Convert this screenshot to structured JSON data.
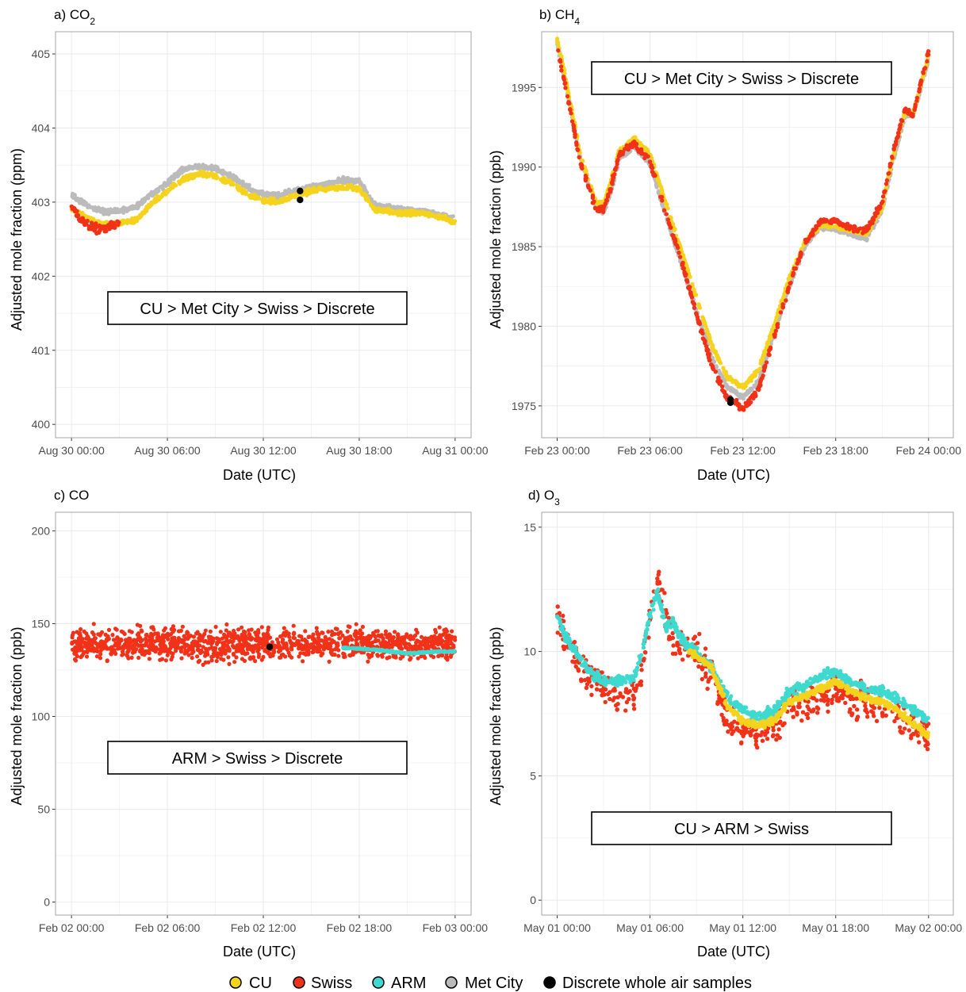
{
  "colors": {
    "CU": "#f5d31c",
    "Swiss": "#f23218",
    "ARM": "#3ed9cf",
    "MetCity": "#bbbbbb",
    "Discrete": "#000000",
    "grid": "#ebebeb",
    "panel_border": "#a6a6a6"
  },
  "legend": {
    "entries": [
      {
        "key": "CU",
        "label": "CU"
      },
      {
        "key": "Swiss",
        "label": "Swiss"
      },
      {
        "key": "ARM",
        "label": "ARM"
      },
      {
        "key": "MetCity",
        "label": "Met City"
      },
      {
        "key": "Discrete",
        "label": "Discrete whole air samples"
      }
    ]
  },
  "chart_data": [
    {
      "type": "scatter",
      "title": "a) CO",
      "title_sub": "2",
      "xlabel": "Date (UTC)",
      "ylabel": "Adjusted mole fraction (ppm)",
      "x_unit": "hours since Aug 30 00:00",
      "xlim": [
        -1,
        25
      ],
      "ylim": [
        399.82,
        405.3
      ],
      "xticks": [
        0,
        6,
        12,
        18,
        24
      ],
      "xtick_labels": [
        "Aug 30 00:00",
        "Aug 30 06:00",
        "Aug 30 12:00",
        "Aug 30 18:00",
        "Aug 31 00:00"
      ],
      "yticks": [
        400,
        401,
        402,
        403,
        404,
        405
      ],
      "ytick_labels": [
        "400",
        "401",
        "402",
        "403",
        "404",
        "405"
      ],
      "annotation": "CU > Met City > Swiss > Discrete",
      "annotation_pos": "lower-left",
      "series": [
        {
          "name": "Met City",
          "key": "MetCity",
          "style": "band",
          "x": [
            0,
            1,
            2,
            3,
            4,
            5,
            6,
            7,
            8,
            9,
            10,
            11,
            12,
            13,
            14,
            15,
            16,
            17,
            18,
            19,
            20,
            21,
            22,
            23,
            24
          ],
          "y": [
            403.1,
            402.95,
            402.87,
            402.88,
            402.93,
            403.1,
            403.25,
            403.45,
            403.48,
            403.45,
            403.35,
            403.2,
            403.1,
            403.1,
            403.15,
            403.2,
            403.25,
            403.3,
            403.28,
            402.95,
            402.92,
            402.9,
            402.88,
            402.82,
            402.78
          ],
          "spread": 0.05
        },
        {
          "name": "CU",
          "key": "CU",
          "style": "band",
          "x": [
            0,
            1,
            2,
            3,
            4,
            5,
            6,
            7,
            8,
            9,
            10,
            11,
            12,
            13,
            14,
            15,
            16,
            17,
            18,
            19,
            20,
            21,
            22,
            23,
            24
          ],
          "y": [
            402.92,
            402.78,
            402.7,
            402.72,
            402.75,
            402.98,
            403.15,
            403.32,
            403.38,
            403.35,
            403.25,
            403.1,
            403.02,
            403.0,
            403.1,
            403.15,
            403.18,
            403.2,
            403.18,
            402.9,
            402.88,
            402.85,
            402.85,
            402.8,
            402.73
          ],
          "spread": 0.05
        },
        {
          "name": "Swiss",
          "key": "Swiss",
          "style": "points",
          "x": [
            0,
            0.5,
            1,
            1.5,
            2,
            2.5,
            3
          ],
          "y": [
            402.95,
            402.8,
            402.7,
            402.65,
            402.62,
            402.7,
            402.72
          ],
          "spread": 0.1
        },
        {
          "name": "Discrete whole air samples",
          "key": "Discrete",
          "style": "markers",
          "x": [
            14.3,
            14.3
          ],
          "y": [
            403.15,
            403.03
          ]
        }
      ]
    },
    {
      "type": "scatter",
      "title": "b) CH",
      "title_sub": "4",
      "xlabel": "Date (UTC)",
      "ylabel": "Adjusted mole fraction (ppb)",
      "x_unit": "hours since Feb 23 00:00",
      "xlim": [
        -1,
        25.6
      ],
      "ylim": [
        1973,
        1998.5
      ],
      "xticks": [
        0,
        6,
        12,
        18,
        24
      ],
      "xtick_labels": [
        "Feb 23 00:00",
        "Feb 23 06:00",
        "Feb 23 12:00",
        "Feb 23 18:00",
        "Feb 24 00:00"
      ],
      "yticks": [
        1975,
        1980,
        1985,
        1990,
        1995
      ],
      "ytick_labels": [
        "1975",
        "1980",
        "1985",
        "1990",
        "1995"
      ],
      "annotation": "CU > Met City > Swiss > Discrete",
      "annotation_pos": "top-center",
      "series": [
        {
          "name": "Met City",
          "key": "MetCity",
          "style": "band",
          "x": [
            0,
            0.5,
            1,
            1.5,
            2,
            2.5,
            3,
            3.5,
            4,
            5,
            6,
            7,
            8,
            9,
            10,
            11,
            12,
            13,
            14,
            15,
            16,
            17,
            18,
            19,
            20,
            21,
            21.5,
            22,
            22.5,
            23,
            24
          ],
          "y": [
            1997.8,
            1995.5,
            1993,
            1990.5,
            1989,
            1987.5,
            1987.2,
            1988.5,
            1990.5,
            1991.3,
            1990.2,
            1987,
            1984,
            1981,
            1978,
            1976.2,
            1975.5,
            1976.5,
            1979.5,
            1982.5,
            1985,
            1986.2,
            1986.1,
            1985.8,
            1985.5,
            1987.3,
            1989.5,
            1991.5,
            1993.3,
            1993.2,
            1996.8
          ],
          "spread": 0.2
        },
        {
          "name": "CU",
          "key": "CU",
          "style": "band",
          "x": [
            0,
            0.5,
            1,
            1.5,
            2,
            2.5,
            3,
            3.5,
            4,
            5,
            6,
            7,
            8,
            9,
            10,
            11,
            12,
            13,
            14,
            15,
            16,
            17,
            18,
            19,
            20,
            21,
            21.5,
            22,
            22.5,
            23,
            24
          ],
          "y": [
            1998,
            1995.8,
            1993.3,
            1990.8,
            1989.3,
            1987.8,
            1987.7,
            1989.2,
            1991,
            1991.8,
            1990.8,
            1987.8,
            1984.8,
            1981.8,
            1978.8,
            1976.8,
            1976.2,
            1977.2,
            1980,
            1983,
            1985.3,
            1986.4,
            1986.3,
            1986,
            1985.8,
            1987.5,
            1989.8,
            1991.8,
            1993.5,
            1993.3,
            1997
          ],
          "spread": 0.2
        },
        {
          "name": "Swiss",
          "key": "Swiss",
          "style": "points",
          "x": [
            0,
            0.5,
            1,
            1.5,
            2,
            2.5,
            3,
            3.5,
            4,
            5,
            6,
            7,
            8,
            9,
            10,
            11,
            12,
            13,
            14,
            15,
            16,
            17,
            18,
            19,
            20,
            21,
            21.5,
            22,
            22.5,
            23,
            24
          ],
          "y": [
            1997.5,
            1995.3,
            1992.8,
            1990.3,
            1988.8,
            1987.4,
            1987.3,
            1988.8,
            1990.8,
            1991.5,
            1990.3,
            1987.2,
            1984.2,
            1980.8,
            1977.5,
            1975.5,
            1974.8,
            1976,
            1979.3,
            1982.6,
            1985.2,
            1986.6,
            1986.6,
            1986.2,
            1986,
            1987.8,
            1990,
            1992,
            1993.6,
            1993.3,
            1997.2
          ],
          "spread": 0.3
        },
        {
          "name": "Discrete whole air samples",
          "key": "Discrete",
          "style": "markers",
          "x": [
            11.2,
            11.2
          ],
          "y": [
            1975.4,
            1975.2
          ]
        }
      ]
    },
    {
      "type": "scatter",
      "title": "c) CO",
      "title_sub": "",
      "xlabel": "Date (UTC)",
      "ylabel": "Adjusted mole fraction (ppb)",
      "x_unit": "hours since Feb 02 00:00",
      "xlim": [
        -1,
        25
      ],
      "ylim": [
        -7,
        210
      ],
      "xticks": [
        0,
        6,
        12,
        18,
        24
      ],
      "xtick_labels": [
        "Feb 02 00:00",
        "Feb 02 06:00",
        "Feb 02 12:00",
        "Feb 02 18:00",
        "Feb 03 00:00"
      ],
      "yticks": [
        0,
        50,
        100,
        150,
        200
      ],
      "ytick_labels": [
        "0",
        "50",
        "100",
        "150",
        "200"
      ],
      "annotation": "ARM > Swiss > Discrete",
      "annotation_pos": "lower-left",
      "series": [
        {
          "name": "Swiss",
          "key": "Swiss",
          "style": "noise",
          "x": [
            0,
            24
          ],
          "y": [
            139,
            139
          ],
          "spread": 12
        },
        {
          "name": "ARM",
          "key": "ARM",
          "style": "band",
          "x": [
            17,
            18,
            19,
            20,
            21,
            22,
            23,
            24
          ],
          "y": [
            137,
            136.5,
            136,
            135,
            134,
            134.5,
            135,
            135
          ],
          "spread": 0.4
        },
        {
          "name": "Discrete whole air samples",
          "key": "Discrete",
          "style": "markers",
          "x": [
            12.4
          ],
          "y": [
            137.5
          ]
        }
      ]
    },
    {
      "type": "scatter",
      "title": "d) O",
      "title_sub": "3",
      "xlabel": "Date (UTC)",
      "ylabel": "Adjusted mole fraction (ppb)",
      "x_unit": "hours since May 01 00:00",
      "xlim": [
        -1,
        25.6
      ],
      "ylim": [
        -0.6,
        15.6
      ],
      "xticks": [
        0,
        6,
        12,
        18,
        24
      ],
      "xtick_labels": [
        "May 01 00:00",
        "May 01 06:00",
        "May 01 12:00",
        "May 01 18:00",
        "May 02 00:00"
      ],
      "yticks": [
        0,
        5,
        10,
        15
      ],
      "ytick_labels": [
        "0",
        "5",
        "10",
        "15"
      ],
      "annotation": "CU > ARM > Swiss",
      "annotation_pos": "lower-center",
      "series": [
        {
          "name": "Swiss",
          "key": "Swiss",
          "style": "points",
          "x": [
            0,
            0.5,
            1,
            2,
            3,
            4,
            5,
            5.5,
            6,
            6.5,
            7,
            7.5,
            8,
            9,
            10,
            11,
            12,
            13,
            14,
            15,
            16,
            17,
            18,
            19,
            20,
            21,
            22,
            23,
            24
          ],
          "y": [
            11.5,
            10.5,
            10,
            9,
            8.5,
            8,
            8.3,
            9.5,
            11.5,
            12.8,
            11.5,
            10.5,
            10.3,
            10,
            9,
            7.3,
            6.8,
            6.5,
            7,
            7.8,
            8,
            8.2,
            8.5,
            8,
            8,
            7.8,
            7.5,
            7,
            6.5
          ],
          "spread": 1
        },
        {
          "name": "ARM",
          "key": "ARM",
          "style": "band",
          "x": [
            0,
            0.5,
            1,
            2,
            3,
            4,
            5,
            5.5,
            6,
            6.5,
            7,
            7.5,
            8,
            9,
            10,
            11,
            12,
            13,
            14,
            15,
            16,
            17,
            18,
            19,
            20,
            21,
            22,
            23,
            24
          ],
          "y": [
            11.5,
            10.6,
            10.2,
            9.2,
            8.8,
            8.8,
            9,
            10,
            11.5,
            12.4,
            11,
            11.2,
            10.5,
            10,
            9.3,
            8.2,
            7.6,
            7.4,
            7.6,
            8.4,
            8.6,
            9,
            9.2,
            8.8,
            8.5,
            8.4,
            8.1,
            7.7,
            7.2
          ],
          "spread": 0.3
        },
        {
          "name": "CU",
          "key": "CU",
          "style": "band",
          "x": [
            8.5,
            9,
            10,
            11,
            12,
            13,
            14,
            15,
            16,
            17,
            18,
            19,
            20,
            21,
            22,
            23,
            24
          ],
          "y": [
            10.0,
            9.8,
            9.3,
            7.8,
            7.2,
            7.0,
            7.2,
            8.0,
            8.2,
            8.5,
            8.8,
            8.4,
            8.1,
            8.0,
            7.6,
            7.1,
            6.6
          ],
          "spread": 0.2
        }
      ]
    }
  ]
}
